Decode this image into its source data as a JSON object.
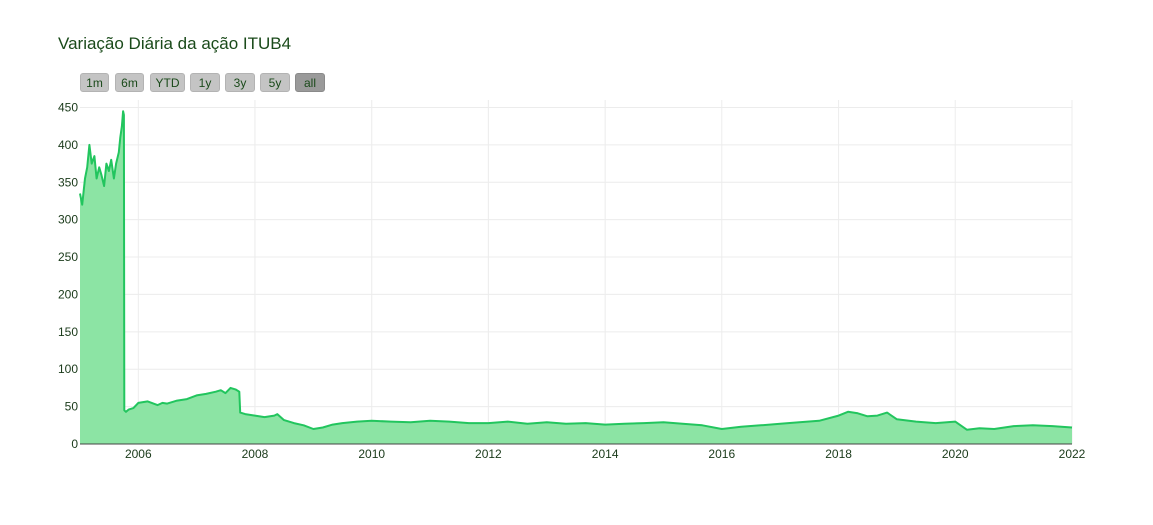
{
  "title": "Variação Diária da ação ITUB4",
  "range_buttons": [
    {
      "label": "1m",
      "active": false
    },
    {
      "label": "6m",
      "active": false
    },
    {
      "label": "YTD",
      "active": false
    },
    {
      "label": "1y",
      "active": false
    },
    {
      "label": "3y",
      "active": false
    },
    {
      "label": "5y",
      "active": false
    },
    {
      "label": "all",
      "active": true
    }
  ],
  "colors": {
    "line": "#22c55e",
    "fill": "#86e39f",
    "grid": "#ececec",
    "text": "#1a3a1a"
  },
  "chart_data": {
    "type": "area",
    "title": "Variação Diária da ação ITUB4",
    "xlabel": "",
    "ylabel": "",
    "xlim": [
      "2005-01-01",
      "2022-01-01"
    ],
    "ylim": [
      0,
      460
    ],
    "grid": true,
    "x_ticks": [
      "2006",
      "2008",
      "2010",
      "2012",
      "2014",
      "2016",
      "2018",
      "2020",
      "2022"
    ],
    "y_ticks": [
      0,
      50,
      100,
      150,
      200,
      250,
      300,
      350,
      400,
      450
    ],
    "series": [
      {
        "x": [
          "2005-01-01",
          "2005-01-15",
          "2005-02-01",
          "2005-02-15",
          "2005-03-01",
          "2005-03-15",
          "2005-04-01",
          "2005-04-15",
          "2005-05-01",
          "2005-05-15",
          "2005-06-01",
          "2005-06-15",
          "2005-07-01",
          "2005-07-15",
          "2005-08-01",
          "2005-08-15",
          "2005-09-01",
          "2005-09-10",
          "2005-09-20",
          "2005-09-28",
          "2005-10-03",
          "2005-10-05",
          "2005-10-15",
          "2005-11-01",
          "2005-12-01",
          "2006-01-01",
          "2006-03-01",
          "2006-05-01",
          "2006-06-01",
          "2006-07-01",
          "2006-09-01",
          "2006-11-01",
          "2007-01-01",
          "2007-03-01",
          "2007-05-01",
          "2007-06-01",
          "2007-07-01",
          "2007-08-01",
          "2007-09-01",
          "2007-09-25",
          "2007-10-01",
          "2007-11-01",
          "2008-01-01",
          "2008-03-01",
          "2008-05-01",
          "2008-05-20",
          "2008-07-01",
          "2008-09-01",
          "2008-11-01",
          "2009-01-01",
          "2009-03-01",
          "2009-05-01",
          "2009-07-01",
          "2009-10-01",
          "2010-01-01",
          "2010-05-01",
          "2010-09-01",
          "2011-01-01",
          "2011-05-01",
          "2011-09-01",
          "2012-01-01",
          "2012-05-01",
          "2012-09-01",
          "2013-01-01",
          "2013-05-01",
          "2013-09-01",
          "2014-01-01",
          "2014-05-01",
          "2014-09-01",
          "2015-01-01",
          "2015-05-01",
          "2015-09-01",
          "2016-01-01",
          "2016-05-01",
          "2016-09-01",
          "2017-01-01",
          "2017-05-01",
          "2017-09-01",
          "2018-01-01",
          "2018-03-01",
          "2018-05-01",
          "2018-07-01",
          "2018-09-01",
          "2018-11-01",
          "2019-01-01",
          "2019-05-01",
          "2019-09-01",
          "2020-01-01",
          "2020-03-15",
          "2020-06-01",
          "2020-09-01",
          "2021-01-01",
          "2021-05-01",
          "2021-09-01",
          "2022-01-01"
        ],
        "values": [
          335,
          320,
          355,
          370,
          400,
          375,
          385,
          355,
          370,
          360,
          345,
          375,
          365,
          380,
          355,
          375,
          390,
          410,
          425,
          445,
          440,
          45,
          43,
          46,
          48,
          55,
          57,
          52,
          55,
          54,
          58,
          60,
          65,
          67,
          70,
          72,
          68,
          75,
          73,
          70,
          42,
          40,
          38,
          36,
          38,
          40,
          32,
          28,
          25,
          20,
          22,
          26,
          28,
          30,
          31,
          30,
          29,
          31,
          30,
          28,
          28,
          30,
          27,
          29,
          27,
          28,
          26,
          27,
          28,
          29,
          27,
          25,
          20,
          23,
          25,
          27,
          29,
          31,
          38,
          43,
          41,
          37,
          38,
          42,
          33,
          30,
          28,
          30,
          19,
          21,
          20,
          24,
          25,
          24,
          22
        ]
      }
    ]
  }
}
